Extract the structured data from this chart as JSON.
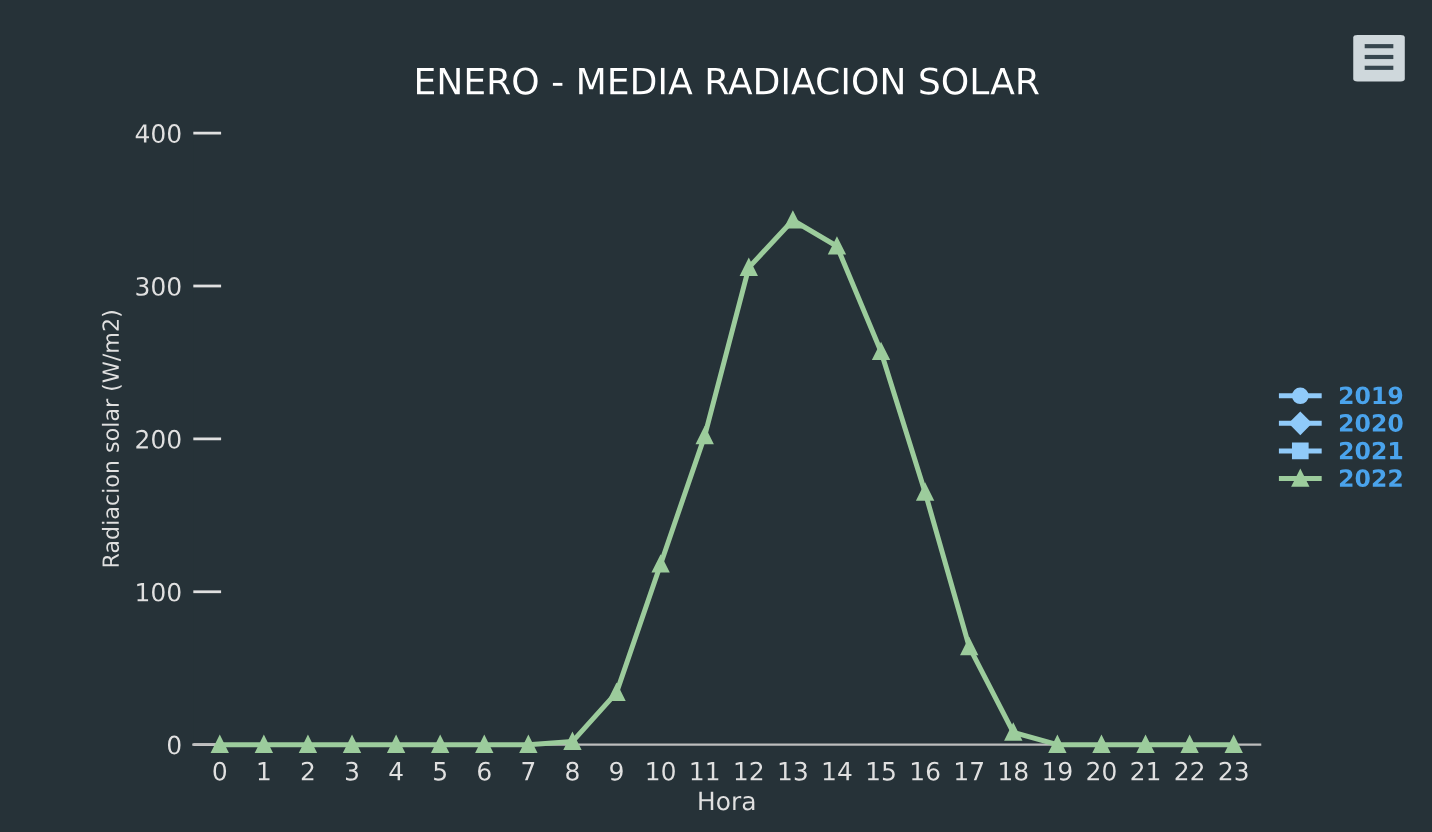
{
  "chart_data": {
    "type": "line",
    "title": "ENERO - MEDIA RADIACION SOLAR",
    "xlabel": "Hora",
    "ylabel": "Radiacion solar (W/m2)",
    "categories": [
      "0",
      "1",
      "2",
      "3",
      "4",
      "5",
      "6",
      "7",
      "8",
      "9",
      "10",
      "11",
      "12",
      "13",
      "14",
      "15",
      "16",
      "17",
      "18",
      "19",
      "20",
      "21",
      "22",
      "23"
    ],
    "ylim": [
      0,
      400
    ],
    "yticks": [
      0,
      100,
      200,
      300,
      400
    ],
    "grid": false,
    "legend": "right",
    "series": [
      {
        "name": "2019",
        "color": "#90caf9",
        "marker": "circle",
        "values": [
          null,
          null,
          null,
          null,
          null,
          null,
          null,
          null,
          null,
          null,
          null,
          null,
          null,
          null,
          null,
          null,
          null,
          null,
          null,
          null,
          null,
          null,
          null,
          null
        ]
      },
      {
        "name": "2020",
        "color": "#90caf9",
        "marker": "diamond",
        "values": [
          null,
          null,
          null,
          null,
          null,
          null,
          null,
          null,
          null,
          null,
          null,
          null,
          null,
          null,
          null,
          null,
          null,
          null,
          null,
          null,
          null,
          null,
          null,
          null
        ]
      },
      {
        "name": "2021",
        "color": "#90caf9",
        "marker": "square",
        "values": [
          null,
          null,
          null,
          null,
          null,
          null,
          null,
          null,
          null,
          null,
          null,
          null,
          null,
          null,
          null,
          null,
          null,
          null,
          null,
          null,
          null,
          null,
          null,
          null
        ]
      },
      {
        "name": "2022",
        "color": "#9ccc9c",
        "marker": "triangle",
        "values": [
          0,
          0,
          0,
          0,
          0,
          0,
          0,
          0,
          2,
          34,
          118,
          202,
          312,
          343,
          326,
          257,
          165,
          64,
          8,
          0,
          0,
          0,
          0,
          0
        ]
      }
    ]
  }
}
